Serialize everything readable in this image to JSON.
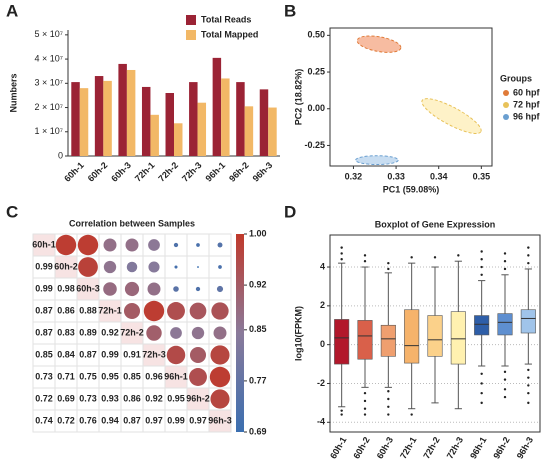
{
  "chart_data": [
    {
      "panel": "A",
      "type": "bar",
      "categories": [
        "60h-1",
        "60h-2",
        "60h-3",
        "72h-1",
        "72h-2",
        "72h-3",
        "96h-1",
        "96h-2",
        "96h-3"
      ],
      "series": [
        {
          "name": "Total Reads",
          "color": "#9b2335",
          "values": [
            30500000,
            33000000,
            38000000,
            28500000,
            26000000,
            30500000,
            40500000,
            30500000,
            27500000
          ]
        },
        {
          "name": "Total Mapped",
          "color": "#f2b866",
          "values": [
            28000000,
            31000000,
            35500000,
            17000000,
            13500000,
            22000000,
            32000000,
            20500000,
            20000000
          ]
        }
      ],
      "ylabel": "Numbers",
      "ylim": [
        0,
        52000000
      ],
      "yticks": [
        0,
        {
          "value": 10000000,
          "label": "1 × 10⁷"
        },
        {
          "value": 20000000,
          "label": "2 × 10⁷"
        },
        {
          "value": 30000000,
          "label": "3 × 10⁷"
        },
        {
          "value": 40000000,
          "label": "4 × 10⁷"
        },
        {
          "value": 50000000,
          "label": "5 × 10⁷"
        }
      ],
      "legend": "upper right"
    },
    {
      "panel": "B",
      "type": "ellipse",
      "xlabel": "PC1 (59.08%)",
      "ylabel": "PC2 (18.82%)",
      "xlim": [
        0.3145,
        0.3525
      ],
      "ylim": [
        -0.39,
        0.55
      ],
      "xticks": [
        0.32,
        0.33,
        0.34,
        0.35
      ],
      "yticks": [
        -0.25,
        {
          "value": 0,
          "label": "0.00"
        },
        0.25,
        {
          "value": 0.5,
          "label": "0.50"
        }
      ],
      "legend_title": "Groups",
      "legend": "right",
      "series": [
        {
          "name": "60 hpf",
          "color": "#e07b39",
          "fill": "#f4a582",
          "cx": 0.326,
          "cy": 0.44,
          "rx": 0.0052,
          "ry": 0.05,
          "angle": 10
        },
        {
          "name": "72 hpf",
          "color": "#e8c25a",
          "fill": "#fdeeb5",
          "cx": 0.343,
          "cy": -0.05,
          "rx": 0.0078,
          "ry": 0.06,
          "angle": 28
        },
        {
          "name": "96 hpf",
          "color": "#6a9fd0",
          "fill": "#b5d2ec",
          "cx": 0.3255,
          "cy": -0.35,
          "rx": 0.005,
          "ry": 0.03,
          "angle": 0
        }
      ]
    },
    {
      "panel": "C",
      "type": "correlation",
      "title": "Correlation between Samples",
      "labels": [
        "60h-1",
        "60h-2",
        "60h-3",
        "72h-1",
        "72h-2",
        "72h-3",
        "96h-1",
        "96h-2",
        "96h-3"
      ],
      "values": [
        [
          0.99
        ],
        [
          0.99,
          0.98
        ],
        [
          0.87,
          0.86,
          0.88
        ],
        [
          0.87,
          0.83,
          0.89,
          0.92
        ],
        [
          0.85,
          0.84,
          0.87,
          0.99,
          0.91
        ],
        [
          0.73,
          0.71,
          0.75,
          0.95,
          0.85,
          0.96
        ],
        [
          0.72,
          0.69,
          0.73,
          0.93,
          0.86,
          0.92,
          0.95
        ],
        [
          0.74,
          0.72,
          0.76,
          0.94,
          0.87,
          0.97,
          0.99,
          0.97
        ]
      ],
      "clim": [
        0.69,
        1.0
      ],
      "cticks": [
        {
          "value": 1.0,
          "label": "1.00"
        },
        0.92,
        0.85,
        0.77,
        0.69
      ]
    },
    {
      "panel": "D",
      "type": "box",
      "title": "Boxplot of Gene Expression",
      "ylabel": "log10(FPKM)",
      "categories": [
        "60h-1",
        "60h-2",
        "60h-3",
        "72h-1",
        "72h-2",
        "72h-3",
        "96h-1",
        "96h-2",
        "96h-3"
      ],
      "colors": [
        "#b2182b",
        "#d9604a",
        "#ef9f6f",
        "#f6b36b",
        "#fbd18a",
        "#fff1b0",
        "#2e5ea8",
        "#5e8fd0",
        "#a0c4ea"
      ],
      "whislo": [
        -3.2,
        -2.2,
        -2.2,
        -3.3,
        -3.0,
        -3.3,
        -1.1,
        -1.1,
        -1.0
      ],
      "q1": [
        -1.0,
        -0.75,
        -0.6,
        -0.95,
        -0.6,
        -1.0,
        0.5,
        0.5,
        0.6
      ],
      "med": [
        0.35,
        0.45,
        0.3,
        -0.05,
        0.25,
        0.3,
        1.05,
        1.15,
        1.35
      ],
      "q3": [
        1.3,
        1.25,
        1.0,
        1.8,
        1.5,
        1.7,
        1.5,
        1.6,
        1.8
      ],
      "whishi": [
        4.2,
        4.0,
        3.7,
        4.2,
        4.0,
        4.3,
        3.3,
        3.6,
        3.9
      ],
      "outliers": [
        [
          4.4,
          4.7,
          5.0,
          -3.4,
          -3.6
        ],
        [
          4.3,
          4.6,
          -2.5,
          -2.9,
          -3.3,
          -3.6
        ],
        [
          3.9,
          4.2,
          -2.4,
          -2.8,
          -3.2,
          -3.6
        ],
        [
          4.5,
          -3.6
        ],
        [
          4.5
        ],
        [
          4.6
        ],
        [
          3.6,
          4.0,
          4.4,
          4.8,
          -1.5,
          -2.0,
          -2.5,
          -3.0
        ],
        [
          3.9,
          4.3,
          4.7,
          -1.4,
          -1.8,
          -2.3,
          -2.7
        ],
        [
          4.2,
          4.6,
          5.0,
          -1.3,
          -1.7,
          -2.1,
          -2.5,
          -3.0
        ]
      ],
      "ylim": [
        -4.5,
        5.65
      ],
      "yticks": [
        -4,
        -2,
        0,
        2,
        4
      ],
      "grid": true
    }
  ]
}
